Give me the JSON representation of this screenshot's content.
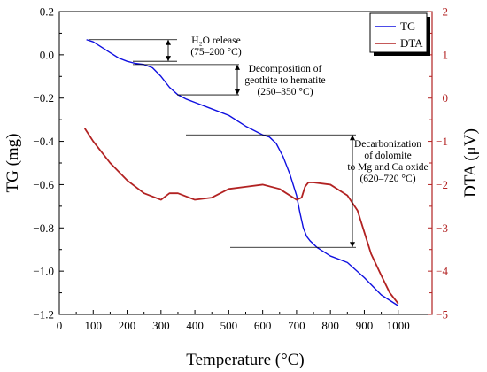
{
  "chart_data": {
    "type": "line",
    "xlabel": "Temperature (°C)",
    "ylabel_left": "TG (mg)",
    "ylabel_right": "DTA (μV)",
    "xlim": [
      0,
      1100
    ],
    "ylim_left": [
      -1.2,
      0.2
    ],
    "ylim_right": [
      -5,
      2
    ],
    "x_ticks": [
      0,
      100,
      200,
      300,
      400,
      500,
      600,
      700,
      800,
      900,
      1000
    ],
    "y_left_ticks": [
      0.2,
      0.0,
      -0.2,
      -0.4,
      -0.6,
      -0.8,
      -1.0,
      -1.2
    ],
    "y_left_tick_labels": [
      "0.2",
      "0.0",
      "−0.2",
      "−0.4",
      "−0.6",
      "−0.8",
      "−1.0",
      "−1.2"
    ],
    "y_right_ticks": [
      2,
      1,
      0,
      -1,
      -2,
      -3,
      -4,
      -5
    ],
    "y_right_tick_labels": [
      "2",
      "1",
      "0",
      "−1",
      "−2",
      "−3",
      "−4",
      "−5"
    ],
    "legend": {
      "position": "top-right",
      "entries": [
        "TG",
        "DTA"
      ]
    },
    "colors": {
      "TG": "#1010e0",
      "DTA": "#b22222"
    },
    "series": [
      {
        "name": "TG",
        "axis": "left",
        "x": [
          80,
          100,
          120,
          150,
          175,
          200,
          225,
          250,
          275,
          300,
          325,
          350,
          375,
          400,
          450,
          500,
          550,
          600,
          620,
          640,
          660,
          680,
          700,
          710,
          720,
          730,
          740,
          760,
          780,
          800,
          850,
          900,
          950,
          1000
        ],
        "y": [
          0.07,
          0.06,
          0.04,
          0.01,
          -0.015,
          -0.03,
          -0.04,
          -0.045,
          -0.06,
          -0.1,
          -0.15,
          -0.185,
          -0.205,
          -0.22,
          -0.25,
          -0.28,
          -0.33,
          -0.37,
          -0.38,
          -0.41,
          -0.47,
          -0.55,
          -0.65,
          -0.73,
          -0.8,
          -0.84,
          -0.86,
          -0.89,
          -0.91,
          -0.93,
          -0.96,
          -1.03,
          -1.11,
          -1.16
        ]
      },
      {
        "name": "DTA",
        "axis": "right",
        "x": [
          75,
          100,
          150,
          200,
          250,
          300,
          325,
          350,
          400,
          450,
          500,
          550,
          600,
          650,
          700,
          715,
          725,
          735,
          750,
          800,
          850,
          880,
          900,
          920,
          950,
          975,
          1000
        ],
        "y": [
          -0.7,
          -1.0,
          -1.5,
          -1.9,
          -2.2,
          -2.35,
          -2.2,
          -2.2,
          -2.35,
          -2.3,
          -2.1,
          -2.05,
          -2.0,
          -2.1,
          -2.35,
          -2.3,
          -2.05,
          -1.95,
          -1.95,
          -2.0,
          -2.25,
          -2.6,
          -3.1,
          -3.6,
          -4.1,
          -4.5,
          -4.75
        ]
      }
    ],
    "annotations": [
      {
        "id": "h2o",
        "lines": [
          "H₂O release",
          "(75–200 °C)"
        ],
        "from_y": 0.07,
        "to_y": -0.03,
        "arrow_x": 190
      },
      {
        "id": "goethite",
        "lines": [
          "Decomposition of",
          "geothite to hematite",
          "(250–350 °C)"
        ],
        "from_y": -0.045,
        "to_y": -0.185,
        "arrow_x": 490
      },
      {
        "id": "dolomite",
        "lines": [
          "Decarbonization",
          "of dolomite",
          "to Mg and Ca oxide",
          "(620–720 °C)"
        ],
        "from_y": -0.37,
        "to_y": -0.89,
        "arrow_x": 820
      }
    ]
  }
}
